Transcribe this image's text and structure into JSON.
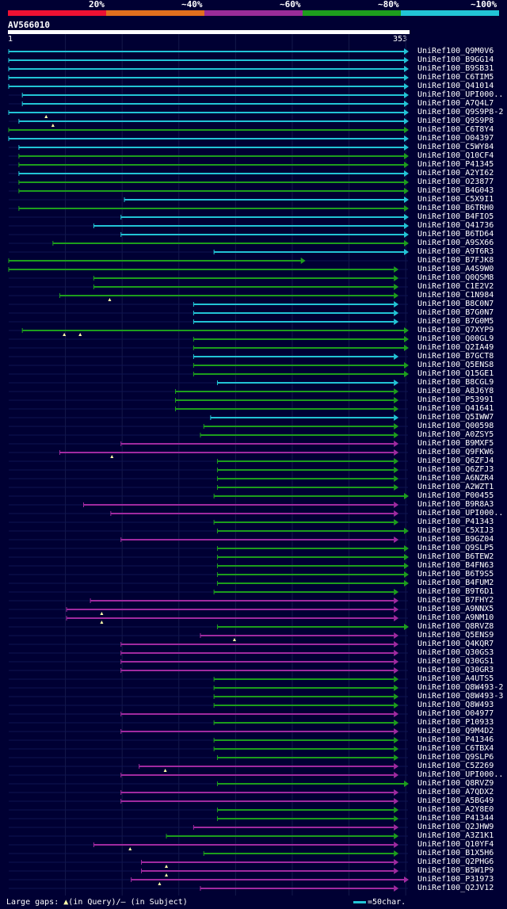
{
  "scale": {
    "ticks": [
      {
        "label": "20%",
        "color": "#ee1133"
      },
      {
        "label": "~40%",
        "color": "#e2701e"
      },
      {
        "label": "~60%",
        "color": "#9a2c99"
      },
      {
        "label": "~80%",
        "color": "#1d9e1d"
      },
      {
        "label": "~100%",
        "color": "#22c4d6"
      }
    ]
  },
  "query": {
    "name": "AV566010",
    "start": "1",
    "end": "353",
    "length": 353
  },
  "colors": {
    "cyan": "#22c4d6",
    "green": "#1d9e1d",
    "purple": "#a02aa0",
    "background": "#000033",
    "triangle": "#ffffaa"
  },
  "hits": [
    {
      "label": "UniRef100_Q9M0V6",
      "s": 1,
      "e": 353,
      "c": "cyan",
      "t": "a"
    },
    {
      "label": "UniRef100_B9GG14",
      "s": 1,
      "e": 353,
      "c": "cyan",
      "t": "a"
    },
    {
      "label": "UniRef100_B9SB31",
      "s": 1,
      "e": 353,
      "c": "cyan",
      "t": "a"
    },
    {
      "label": "UniRef100_C6TIM5",
      "s": 1,
      "e": 353,
      "c": "cyan",
      "t": "a"
    },
    {
      "label": "UniRef100_Q41014",
      "s": 1,
      "e": 353,
      "c": "cyan",
      "t": "a"
    },
    {
      "label": "UniRef100_UPI000..",
      "s": 13,
      "e": 353,
      "c": "cyan",
      "t": "a"
    },
    {
      "label": "UniRef100_A7Q4L7",
      "s": 13,
      "e": 353,
      "c": "cyan",
      "t": "a"
    },
    {
      "label": "UniRef100_Q9S9P8-2",
      "s": 1,
      "e": 353,
      "c": "cyan",
      "t": "a",
      "g": [
        34
      ]
    },
    {
      "label": "UniRef100_Q9S9P8",
      "s": 10,
      "e": 353,
      "c": "cyan",
      "t": "a",
      "g": [
        40
      ]
    },
    {
      "label": "UniRef100_C6T8Y4",
      "s": 1,
      "e": 353,
      "c": "green",
      "t": "a"
    },
    {
      "label": "UniRef100_O04397",
      "s": 1,
      "e": 353,
      "c": "cyan",
      "t": "a"
    },
    {
      "label": "UniRef100_C5WY84",
      "s": 10,
      "e": 353,
      "c": "cyan",
      "t": "a"
    },
    {
      "label": "UniRef100_Q10CF4",
      "s": 10,
      "e": 353,
      "c": "green",
      "t": "a"
    },
    {
      "label": "UniRef100_P41345",
      "s": 10,
      "e": 353,
      "c": "green",
      "t": "a"
    },
    {
      "label": "UniRef100_A2YI62",
      "s": 10,
      "e": 353,
      "c": "cyan",
      "t": "a"
    },
    {
      "label": "UniRef100_O23877",
      "s": 10,
      "e": 353,
      "c": "green",
      "t": "a"
    },
    {
      "label": "UniRef100_B4G043",
      "s": 10,
      "e": 353,
      "c": "green",
      "t": "a"
    },
    {
      "label": "UniRef100_C5X9I1",
      "s": 103,
      "e": 353,
      "c": "cyan",
      "t": "a"
    },
    {
      "label": "UniRef100_B6TRH0",
      "s": 10,
      "e": 353,
      "c": "green",
      "t": "a"
    },
    {
      "label": "UniRef100_B4FIO5",
      "s": 100,
      "e": 353,
      "c": "cyan",
      "t": "a"
    },
    {
      "label": "UniRef100_Q41736",
      "s": 76,
      "e": 353,
      "c": "cyan",
      "t": "a"
    },
    {
      "label": "UniRef100_B6TD64",
      "s": 100,
      "e": 353,
      "c": "cyan",
      "t": "a"
    },
    {
      "label": "UniRef100_A9SX66",
      "s": 40,
      "e": 353,
      "c": "green",
      "t": "a"
    },
    {
      "label": "UniRef100_A9T6R3",
      "s": 182,
      "e": 353,
      "c": "cyan",
      "t": "a"
    },
    {
      "label": "UniRef100_B7FJK8",
      "s": 1,
      "e": 262,
      "c": "green",
      "t": "a"
    },
    {
      "label": "UniRef100_A4S9W0",
      "s": 1,
      "e": 344,
      "c": "green",
      "t": "a"
    },
    {
      "label": "UniRef100_Q0QSM8",
      "s": 76,
      "e": 344,
      "c": "green",
      "t": "a"
    },
    {
      "label": "UniRef100_C1E2V2",
      "s": 76,
      "e": 344,
      "c": "green",
      "t": "a"
    },
    {
      "label": "UniRef100_C1N984",
      "s": 46,
      "e": 344,
      "c": "green",
      "t": "a",
      "g": [
        90
      ]
    },
    {
      "label": "UniRef100_B8C0N7",
      "s": 164,
      "e": 344,
      "c": "cyan",
      "t": "a"
    },
    {
      "label": "UniRef100_B7G0N7",
      "s": 164,
      "e": 344,
      "c": "cyan",
      "t": "a"
    },
    {
      "label": "UniRef100_B7G0M5",
      "s": 164,
      "e": 344,
      "c": "cyan",
      "t": "a"
    },
    {
      "label": "UniRef100_Q7XYP9",
      "s": 13,
      "e": 353,
      "c": "green",
      "t": "a",
      "g": [
        50,
        64
      ]
    },
    {
      "label": "UniRef100_Q00GL9",
      "s": 164,
      "e": 353,
      "c": "green",
      "t": "a"
    },
    {
      "label": "UniRef100_Q2IA49",
      "s": 164,
      "e": 353,
      "c": "green",
      "t": "a"
    },
    {
      "label": "UniRef100_B7GCT8",
      "s": 164,
      "e": 344,
      "c": "cyan",
      "t": "a"
    },
    {
      "label": "UniRef100_Q5ENS8",
      "s": 164,
      "e": 353,
      "c": "green",
      "t": "a"
    },
    {
      "label": "UniRef100_Q15GE1",
      "s": 164,
      "e": 353,
      "c": "green",
      "t": "a"
    },
    {
      "label": "UniRef100_B8CGL9",
      "s": 185,
      "e": 344,
      "c": "cyan",
      "t": "a"
    },
    {
      "label": "UniRef100_A8J6Y8",
      "s": 148,
      "e": 344,
      "c": "green",
      "t": "a"
    },
    {
      "label": "UniRef100_P53991",
      "s": 148,
      "e": 344,
      "c": "green",
      "t": "a"
    },
    {
      "label": "UniRef100_Q41641",
      "s": 148,
      "e": 344,
      "c": "green",
      "t": "a"
    },
    {
      "label": "UniRef100_Q5IWW7",
      "s": 179,
      "e": 344,
      "c": "cyan",
      "t": "a"
    },
    {
      "label": "UniRef100_Q00598",
      "s": 173,
      "e": 344,
      "c": "green",
      "t": "a"
    },
    {
      "label": "UniRef100_A0ZSY5",
      "s": 170,
      "e": 344,
      "c": "green",
      "t": "a"
    },
    {
      "label": "UniRef100_B9MXF5",
      "s": 100,
      "e": 344,
      "c": "purple",
      "t": "a"
    },
    {
      "label": "UniRef100_Q9FKW6",
      "s": 46,
      "e": 344,
      "c": "purple",
      "t": "a",
      "g": [
        92
      ]
    },
    {
      "label": "UniRef100_Q6ZFJ4",
      "s": 185,
      "e": 344,
      "c": "green",
      "t": "a"
    },
    {
      "label": "UniRef100_Q6ZFJ3",
      "s": 185,
      "e": 344,
      "c": "green",
      "t": "a"
    },
    {
      "label": "UniRef100_A6NZR4",
      "s": 185,
      "e": 344,
      "c": "green",
      "t": "a"
    },
    {
      "label": "UniRef100_A2WZT1",
      "s": 185,
      "e": 344,
      "c": "green",
      "t": "a"
    },
    {
      "label": "UniRef100_P00455",
      "s": 182,
      "e": 353,
      "c": "green",
      "t": "a"
    },
    {
      "label": "UniRef100_B9R8A3",
      "s": 67,
      "e": 344,
      "c": "purple",
      "t": "a"
    },
    {
      "label": "UniRef100_UPI000..",
      "s": 91,
      "e": 344,
      "c": "purple",
      "t": "a"
    },
    {
      "label": "UniRef100_P41343",
      "s": 182,
      "e": 344,
      "c": "green",
      "t": "a"
    },
    {
      "label": "UniRef100_C5XIJ3",
      "s": 185,
      "e": 353,
      "c": "green",
      "t": "a"
    },
    {
      "label": "UniRef100_B9GZ04",
      "s": 100,
      "e": 344,
      "c": "purple",
      "t": "a"
    },
    {
      "label": "UniRef100_Q9SLP5",
      "s": 185,
      "e": 353,
      "c": "green",
      "t": "a"
    },
    {
      "label": "UniRef100_B6TEW2",
      "s": 185,
      "e": 353,
      "c": "green",
      "t": "a"
    },
    {
      "label": "UniRef100_B4FN63",
      "s": 185,
      "e": 353,
      "c": "green",
      "t": "a"
    },
    {
      "label": "UniRef100_B6T9S5",
      "s": 185,
      "e": 353,
      "c": "green",
      "t": "a"
    },
    {
      "label": "UniRef100_B4FUM2",
      "s": 185,
      "e": 353,
      "c": "green",
      "t": "a"
    },
    {
      "label": "UniRef100_B9T6D1",
      "s": 182,
      "e": 344,
      "c": "green",
      "t": "a"
    },
    {
      "label": "UniRef100_B7FHY2",
      "s": 73,
      "e": 344,
      "c": "purple",
      "t": "a"
    },
    {
      "label": "UniRef100_A9NNX5",
      "s": 52,
      "e": 344,
      "c": "purple",
      "t": "a",
      "g": [
        83
      ]
    },
    {
      "label": "UniRef100_A9NM10",
      "s": 52,
      "e": 344,
      "c": "purple",
      "t": "a",
      "g": [
        83
      ]
    },
    {
      "label": "UniRef100_Q8RVZ8",
      "s": 185,
      "e": 353,
      "c": "green",
      "t": "a"
    },
    {
      "label": "UniRef100_Q5ENS9",
      "s": 170,
      "e": 344,
      "c": "purple",
      "t": "a",
      "g": [
        200
      ]
    },
    {
      "label": "UniRef100_Q4KQR7",
      "s": 100,
      "e": 344,
      "c": "purple",
      "t": "a"
    },
    {
      "label": "UniRef100_Q30GS3",
      "s": 100,
      "e": 344,
      "c": "purple",
      "t": "a"
    },
    {
      "label": "UniRef100_Q30GS1",
      "s": 100,
      "e": 344,
      "c": "purple",
      "t": "a"
    },
    {
      "label": "UniRef100_Q30GR3",
      "s": 100,
      "e": 344,
      "c": "purple",
      "t": "a"
    },
    {
      "label": "UniRef100_A4UTS5",
      "s": 182,
      "e": 344,
      "c": "green",
      "t": "a"
    },
    {
      "label": "UniRef100_Q8W493-2",
      "s": 182,
      "e": 344,
      "c": "green",
      "t": "a"
    },
    {
      "label": "UniRef100_Q8W493-3",
      "s": 182,
      "e": 344,
      "c": "green",
      "t": "a"
    },
    {
      "label": "UniRef100_Q8W493",
      "s": 182,
      "e": 344,
      "c": "green",
      "t": "a"
    },
    {
      "label": "UniRef100_O04977",
      "s": 100,
      "e": 344,
      "c": "purple",
      "t": "a"
    },
    {
      "label": "UniRef100_P10933",
      "s": 182,
      "e": 344,
      "c": "green",
      "t": "a"
    },
    {
      "label": "UniRef100_Q9M4D2",
      "s": 100,
      "e": 344,
      "c": "purple",
      "t": "a"
    },
    {
      "label": "UniRef100_P41346",
      "s": 182,
      "e": 344,
      "c": "green",
      "t": "a"
    },
    {
      "label": "UniRef100_C6TBX4",
      "s": 182,
      "e": 344,
      "c": "green",
      "t": "a"
    },
    {
      "label": "UniRef100_Q9SLP6",
      "s": 185,
      "e": 344,
      "c": "green",
      "t": "a"
    },
    {
      "label": "UniRef100_C5Z269",
      "s": 116,
      "e": 344,
      "c": "purple",
      "t": "a",
      "g": [
        139
      ]
    },
    {
      "label": "UniRef100_UPI000..",
      "s": 100,
      "e": 344,
      "c": "purple",
      "t": "a"
    },
    {
      "label": "UniRef100_Q8RVZ9",
      "s": 185,
      "e": 353,
      "c": "green",
      "t": "a"
    },
    {
      "label": "UniRef100_A7QDX2",
      "s": 100,
      "e": 344,
      "c": "purple",
      "t": "a"
    },
    {
      "label": "UniRef100_A5BG49",
      "s": 100,
      "e": 344,
      "c": "purple",
      "t": "a"
    },
    {
      "label": "UniRef100_A2Y8E0",
      "s": 185,
      "e": 344,
      "c": "green",
      "t": "a"
    },
    {
      "label": "UniRef100_P41344",
      "s": 185,
      "e": 344,
      "c": "green",
      "t": "a"
    },
    {
      "label": "UniRef100_Q2JHW9",
      "s": 164,
      "e": 344,
      "c": "purple",
      "t": "a"
    },
    {
      "label": "UniRef100_A3Z1K1",
      "s": 140,
      "e": 344,
      "c": "green",
      "t": "a"
    },
    {
      "label": "UniRef100_Q10YF4",
      "s": 76,
      "e": 344,
      "c": "purple",
      "t": "a",
      "g": [
        108
      ]
    },
    {
      "label": "UniRef100_B1X5H6",
      "s": 173,
      "e": 344,
      "c": "green",
      "t": "a"
    },
    {
      "label": "UniRef100_Q2PHG6",
      "s": 118,
      "e": 344,
      "c": "purple",
      "t": "a",
      "g": [
        140
      ]
    },
    {
      "label": "UniRef100_B5W1P9",
      "s": 118,
      "e": 344,
      "c": "purple",
      "t": "a",
      "g": [
        140
      ]
    },
    {
      "label": "UniRef100_P31973",
      "s": 109,
      "e": 353,
      "c": "purple",
      "t": "a",
      "g": [
        134
      ]
    },
    {
      "label": "UniRef100_Q2JV12",
      "s": 170,
      "e": 344,
      "c": "purple",
      "t": "a"
    }
  ],
  "footer": {
    "legend_prefix": "Large gaps:",
    "legend_query": "(in Query)/",
    "legend_subject": "(in Subject)",
    "scale_label": "=50char."
  }
}
